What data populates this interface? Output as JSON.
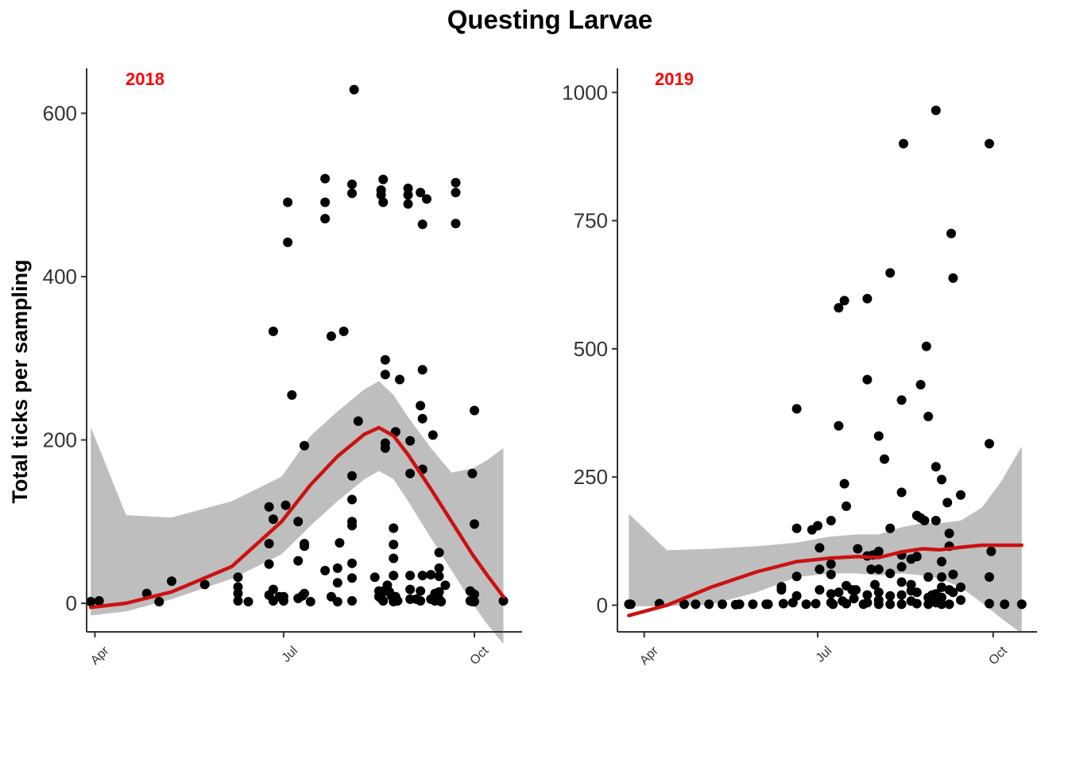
{
  "figure": {
    "title": "Questing Larvae",
    "ylabel": "Total ticks per sampling",
    "colors": {
      "smooth": "#cc1111",
      "ribbon": "#bebebe",
      "points": "#000000",
      "panel_tag": "#ff0000"
    }
  },
  "chart_data": [
    {
      "type": "scatter",
      "panel_label": "2018",
      "xlim": [
        "2018-03-28",
        "2018-10-24"
      ],
      "ylim": [
        -35,
        655
      ],
      "yticks": [
        0,
        200,
        400,
        600
      ],
      "ytick_labels": [
        "0",
        "200",
        "400",
        "600"
      ],
      "xticks": [
        "2018-04-01",
        "2018-07-01",
        "2018-10-01"
      ],
      "xtick_labels": [
        "Apr",
        "Jul",
        "Oct"
      ],
      "grid": false,
      "points": [
        [
          "2018-03-30",
          2
        ],
        [
          "2018-04-03",
          3
        ],
        [
          "2018-04-26",
          12
        ],
        [
          "2018-05-02",
          2
        ],
        [
          "2018-05-08",
          27
        ],
        [
          "2018-05-24",
          23
        ],
        [
          "2018-06-09",
          32
        ],
        [
          "2018-06-09",
          20
        ],
        [
          "2018-06-09",
          12
        ],
        [
          "2018-06-09",
          3
        ],
        [
          "2018-06-14",
          2
        ],
        [
          "2018-06-24",
          118
        ],
        [
          "2018-06-24",
          73
        ],
        [
          "2018-06-24",
          48
        ],
        [
          "2018-06-24",
          10
        ],
        [
          "2018-06-26",
          333
        ],
        [
          "2018-06-26",
          103
        ],
        [
          "2018-06-26",
          17
        ],
        [
          "2018-06-26",
          3
        ],
        [
          "2018-06-29",
          8
        ],
        [
          "2018-07-01",
          8
        ],
        [
          "2018-07-01",
          3
        ],
        [
          "2018-07-02",
          120
        ],
        [
          "2018-07-03",
          491
        ],
        [
          "2018-07-03",
          442
        ],
        [
          "2018-07-05",
          255
        ],
        [
          "2018-07-08",
          100
        ],
        [
          "2018-07-08",
          52
        ],
        [
          "2018-07-08",
          6
        ],
        [
          "2018-07-10",
          9
        ],
        [
          "2018-07-11",
          193
        ],
        [
          "2018-07-11",
          73
        ],
        [
          "2018-07-11",
          70
        ],
        [
          "2018-07-11",
          12
        ],
        [
          "2018-07-14",
          2
        ],
        [
          "2018-07-21",
          520
        ],
        [
          "2018-07-21",
          491
        ],
        [
          "2018-07-21",
          471
        ],
        [
          "2018-07-21",
          40
        ],
        [
          "2018-07-24",
          327
        ],
        [
          "2018-07-24",
          8
        ],
        [
          "2018-07-27",
          43
        ],
        [
          "2018-07-27",
          25
        ],
        [
          "2018-07-27",
          2
        ],
        [
          "2018-07-28",
          74
        ],
        [
          "2018-07-30",
          333
        ],
        [
          "2018-08-04",
          629
        ],
        [
          "2018-08-03",
          513
        ],
        [
          "2018-08-03",
          502
        ],
        [
          "2018-08-03",
          156
        ],
        [
          "2018-08-03",
          127
        ],
        [
          "2018-08-03",
          100
        ],
        [
          "2018-08-03",
          95
        ],
        [
          "2018-08-03",
          49
        ],
        [
          "2018-08-03",
          31
        ],
        [
          "2018-08-03",
          3
        ],
        [
          "2018-08-06",
          223
        ],
        [
          "2018-08-14",
          32
        ],
        [
          "2018-08-18",
          519
        ],
        [
          "2018-08-17",
          506
        ],
        [
          "2018-08-17",
          500
        ],
        [
          "2018-08-18",
          491
        ],
        [
          "2018-08-19",
          298
        ],
        [
          "2018-08-19",
          280
        ],
        [
          "2018-08-19",
          196
        ],
        [
          "2018-08-19",
          190
        ],
        [
          "2018-08-19",
          16
        ],
        [
          "2018-08-17",
          6
        ],
        [
          "2018-08-16",
          8
        ],
        [
          "2018-08-16",
          15
        ],
        [
          "2018-08-17",
          10
        ],
        [
          "2018-08-18",
          3
        ],
        [
          "2018-08-20",
          22
        ],
        [
          "2018-08-21",
          14
        ],
        [
          "2018-08-22",
          9
        ],
        [
          "2018-08-23",
          92
        ],
        [
          "2018-08-23",
          72
        ],
        [
          "2018-08-23",
          55
        ],
        [
          "2018-08-23",
          34
        ],
        [
          "2018-08-24",
          210
        ],
        [
          "2018-08-24",
          8
        ],
        [
          "2018-08-23",
          2
        ],
        [
          "2018-08-26",
          274
        ],
        [
          "2018-08-25",
          3
        ],
        [
          "2018-08-30",
          508
        ],
        [
          "2018-08-30",
          500
        ],
        [
          "2018-08-30",
          489
        ],
        [
          "2018-08-31",
          199
        ],
        [
          "2018-08-31",
          159
        ],
        [
          "2018-08-31",
          34
        ],
        [
          "2018-08-31",
          17
        ],
        [
          "2018-08-31",
          5
        ],
        [
          "2018-09-03",
          5
        ],
        [
          "2018-09-05",
          503
        ],
        [
          "2018-09-06",
          464
        ],
        [
          "2018-09-06",
          286
        ],
        [
          "2018-09-05",
          242
        ],
        [
          "2018-09-06",
          226
        ],
        [
          "2018-09-06",
          164
        ],
        [
          "2018-09-06",
          34
        ],
        [
          "2018-09-05",
          15
        ],
        [
          "2018-09-05",
          3
        ],
        [
          "2018-09-08",
          495
        ],
        [
          "2018-09-10",
          35
        ],
        [
          "2018-09-10",
          5
        ],
        [
          "2018-09-11",
          206
        ],
        [
          "2018-09-12",
          12
        ],
        [
          "2018-09-12",
          3
        ],
        [
          "2018-09-14",
          62
        ],
        [
          "2018-09-14",
          43
        ],
        [
          "2018-09-14",
          33
        ],
        [
          "2018-09-14",
          14
        ],
        [
          "2018-09-14",
          5
        ],
        [
          "2018-09-15",
          2
        ],
        [
          "2018-09-17",
          22
        ],
        [
          "2018-09-22",
          515
        ],
        [
          "2018-09-22",
          503
        ],
        [
          "2018-09-22",
          465
        ],
        [
          "2018-09-29",
          15
        ],
        [
          "2018-09-29",
          3
        ],
        [
          "2018-09-30",
          159
        ],
        [
          "2018-09-30",
          2
        ],
        [
          "2018-10-01",
          236
        ],
        [
          "2018-10-01",
          97
        ],
        [
          "2018-10-01",
          11
        ],
        [
          "2018-10-01",
          2
        ],
        [
          "2018-10-15",
          3
        ]
      ],
      "smooth": {
        "x": [
          "2018-03-30",
          "2018-04-16",
          "2018-05-08",
          "2018-06-06",
          "2018-06-30",
          "2018-07-14",
          "2018-07-27",
          "2018-08-09",
          "2018-08-16",
          "2018-08-23",
          "2018-08-30",
          "2018-09-10",
          "2018-09-20",
          "2018-09-30",
          "2018-10-07",
          "2018-10-15"
        ],
        "fit": [
          -5,
          0,
          14,
          45,
          100,
          145,
          180,
          207,
          215,
          205,
          182,
          140,
          100,
          60,
          35,
          8
        ],
        "lower": [
          -15,
          -10,
          5,
          30,
          60,
          95,
          125,
          152,
          162,
          152,
          125,
          80,
          40,
          0,
          -25,
          -50
        ],
        "upper": [
          216,
          108,
          105,
          125,
          155,
          205,
          235,
          262,
          272,
          255,
          228,
          190,
          160,
          165,
          175,
          190
        ]
      }
    },
    {
      "type": "scatter",
      "panel_label": "2019",
      "xlim": [
        "2019-03-18",
        "2019-10-24"
      ],
      "ylim": [
        -52,
        1047
      ],
      "yticks": [
        0,
        250,
        500,
        750,
        1000
      ],
      "ytick_labels": [
        "0",
        "250",
        "500",
        "750",
        "1000"
      ],
      "xticks": [
        "2019-04-01",
        "2019-07-01",
        "2019-10-01"
      ],
      "xtick_labels": [
        "Apr",
        "Jul",
        "Oct"
      ],
      "grid": false,
      "points": [
        [
          "2019-03-24",
          2
        ],
        [
          "2019-03-25",
          2
        ],
        [
          "2019-04-09",
          3
        ],
        [
          "2019-04-22",
          2
        ],
        [
          "2019-04-28",
          2
        ],
        [
          "2019-05-05",
          2
        ],
        [
          "2019-05-12",
          2
        ],
        [
          "2019-05-19",
          1
        ],
        [
          "2019-05-21",
          2
        ],
        [
          "2019-05-28",
          2
        ],
        [
          "2019-06-04",
          2
        ],
        [
          "2019-06-05",
          2
        ],
        [
          "2019-06-12",
          36
        ],
        [
          "2019-06-12",
          30
        ],
        [
          "2019-06-13",
          3
        ],
        [
          "2019-06-18",
          5
        ],
        [
          "2019-06-25",
          2
        ],
        [
          "2019-06-30",
          3
        ],
        [
          "2019-06-20",
          383
        ],
        [
          "2019-06-20",
          150
        ],
        [
          "2019-06-20",
          56
        ],
        [
          "2019-06-20",
          18
        ],
        [
          "2019-06-28",
          147
        ],
        [
          "2019-07-02",
          112
        ],
        [
          "2019-07-02",
          70
        ],
        [
          "2019-07-02",
          30
        ],
        [
          "2019-07-01",
          155
        ],
        [
          "2019-07-08",
          165
        ],
        [
          "2019-07-08",
          80
        ],
        [
          "2019-07-08",
          60
        ],
        [
          "2019-07-08",
          22
        ],
        [
          "2019-07-08",
          5
        ],
        [
          "2019-07-09",
          2
        ],
        [
          "2019-07-12",
          350
        ],
        [
          "2019-07-12",
          580
        ],
        [
          "2019-07-12",
          25
        ],
        [
          "2019-07-14",
          8
        ],
        [
          "2019-07-15",
          594
        ],
        [
          "2019-07-15",
          237
        ],
        [
          "2019-07-16",
          193
        ],
        [
          "2019-07-16",
          38
        ],
        [
          "2019-07-16",
          3
        ],
        [
          "2019-07-19",
          30
        ],
        [
          "2019-07-21",
          30
        ],
        [
          "2019-07-22",
          110
        ],
        [
          "2019-07-20",
          13
        ],
        [
          "2019-07-25",
          2
        ],
        [
          "2019-07-27",
          598
        ],
        [
          "2019-07-27",
          440
        ],
        [
          "2019-07-27",
          96
        ],
        [
          "2019-07-27",
          20
        ],
        [
          "2019-07-27",
          5
        ],
        [
          "2019-07-29",
          70
        ],
        [
          "2019-07-30",
          98
        ],
        [
          "2019-07-31",
          40
        ],
        [
          "2019-08-02",
          330
        ],
        [
          "2019-08-02",
          105
        ],
        [
          "2019-08-02",
          70
        ],
        [
          "2019-08-02",
          25
        ],
        [
          "2019-08-02",
          10
        ],
        [
          "2019-08-02",
          2
        ],
        [
          "2019-08-05",
          285
        ],
        [
          "2019-08-08",
          648
        ],
        [
          "2019-08-08",
          150
        ],
        [
          "2019-08-08",
          62
        ],
        [
          "2019-08-08",
          18
        ],
        [
          "2019-08-08",
          2
        ],
        [
          "2019-08-14",
          400
        ],
        [
          "2019-08-14",
          220
        ],
        [
          "2019-08-14",
          98
        ],
        [
          "2019-08-14",
          75
        ],
        [
          "2019-08-14",
          45
        ],
        [
          "2019-08-14",
          20
        ],
        [
          "2019-08-14",
          2
        ],
        [
          "2019-08-15",
          900
        ],
        [
          "2019-08-19",
          90
        ],
        [
          "2019-08-19",
          40
        ],
        [
          "2019-08-19",
          28
        ],
        [
          "2019-08-19",
          8
        ],
        [
          "2019-08-22",
          175
        ],
        [
          "2019-08-22",
          95
        ],
        [
          "2019-08-22",
          25
        ],
        [
          "2019-08-22",
          3
        ],
        [
          "2019-08-24",
          430
        ],
        [
          "2019-08-24",
          170
        ],
        [
          "2019-08-26",
          165
        ],
        [
          "2019-08-27",
          505
        ],
        [
          "2019-08-28",
          368
        ],
        [
          "2019-08-28",
          55
        ],
        [
          "2019-08-28",
          15
        ],
        [
          "2019-08-28",
          2
        ],
        [
          "2019-08-30",
          20
        ],
        [
          "2019-09-01",
          965
        ],
        [
          "2019-09-01",
          270
        ],
        [
          "2019-09-01",
          165
        ],
        [
          "2019-09-01",
          22
        ],
        [
          "2019-09-01",
          5
        ],
        [
          "2019-09-04",
          245
        ],
        [
          "2019-09-04",
          85
        ],
        [
          "2019-09-04",
          55
        ],
        [
          "2019-09-04",
          35
        ],
        [
          "2019-09-04",
          15
        ],
        [
          "2019-09-04",
          2
        ],
        [
          "2019-09-07",
          200
        ],
        [
          "2019-09-08",
          140
        ],
        [
          "2019-09-08",
          115
        ],
        [
          "2019-09-08",
          30
        ],
        [
          "2019-09-08",
          2
        ],
        [
          "2019-09-09",
          725
        ],
        [
          "2019-09-10",
          638
        ],
        [
          "2019-09-10",
          60
        ],
        [
          "2019-09-10",
          25
        ],
        [
          "2019-09-14",
          215
        ],
        [
          "2019-09-14",
          35
        ],
        [
          "2019-09-14",
          10
        ],
        [
          "2019-09-29",
          900
        ],
        [
          "2019-09-29",
          315
        ],
        [
          "2019-09-29",
          55
        ],
        [
          "2019-09-29",
          3
        ],
        [
          "2019-09-30",
          105
        ],
        [
          "2019-10-07",
          2
        ],
        [
          "2019-10-16",
          2
        ]
      ],
      "smooth": {
        "x": [
          "2019-03-24",
          "2019-04-13",
          "2019-05-06",
          "2019-05-30",
          "2019-06-20",
          "2019-07-08",
          "2019-07-22",
          "2019-08-02",
          "2019-08-14",
          "2019-08-25",
          "2019-09-03",
          "2019-09-14",
          "2019-09-25",
          "2019-10-05",
          "2019-10-16"
        ],
        "fit": [
          -20,
          0,
          35,
          65,
          85,
          92,
          95,
          93,
          104,
          110,
          108,
          113,
          117,
          117,
          117
        ],
        "lower": [
          -2,
          -2,
          1,
          25,
          55,
          62,
          62,
          58,
          62,
          58,
          52,
          35,
          5,
          -25,
          -55
        ],
        "upper": [
          178,
          107,
          110,
          115,
          122,
          134,
          138,
          138,
          152,
          160,
          160,
          165,
          190,
          240,
          310
        ]
      }
    }
  ]
}
